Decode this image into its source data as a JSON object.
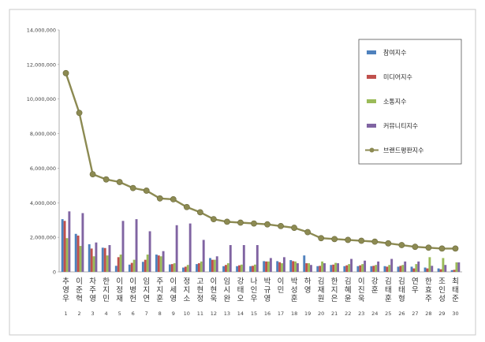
{
  "chart_data": {
    "type": "bar",
    "title": "",
    "xlabel": "",
    "ylabel": "",
    "ylim": [
      0,
      14000000
    ],
    "yticks": [
      "0",
      "2,000,000",
      "4,000,000",
      "6,000,000",
      "8,000,000",
      "10,000,000",
      "12,000,000",
      "14,000,000"
    ],
    "grid": false,
    "legend_position": "top-right",
    "categories": [
      "추영우",
      "이준혁",
      "차주영",
      "한지민",
      "이정재",
      "이병헌",
      "임지연",
      "주지훈",
      "이세영",
      "정지소",
      "고현정",
      "이현욱",
      "임시완",
      "강태오",
      "나인우",
      "박규영",
      "이민",
      "박성훈",
      "하영",
      "김재원",
      "한지은",
      "김혜윤",
      "이진욱",
      "강훈",
      "김태훈",
      "김태형",
      "연우",
      "한효주",
      "조인성",
      "최태준"
    ],
    "ranks": [
      "1",
      "2",
      "3",
      "4",
      "5",
      "6",
      "7",
      "8",
      "9",
      "10",
      "11",
      "12",
      "13",
      "14",
      "15",
      "16",
      "17",
      "18",
      "19",
      "20",
      "21",
      "22",
      "23",
      "24",
      "25",
      "26",
      "27",
      "28",
      "29",
      "30"
    ],
    "series": [
      {
        "name": "참여지수",
        "color": "#4f81bd",
        "kind": "bar",
        "values": [
          3050000,
          2200000,
          1600000,
          1400000,
          350000,
          420000,
          580000,
          1000000,
          430000,
          250000,
          450000,
          800000,
          330000,
          330000,
          330000,
          620000,
          620000,
          680000,
          950000,
          330000,
          400000,
          330000,
          330000,
          330000,
          330000,
          300000,
          300000,
          250000,
          200000,
          100000
        ]
      },
      {
        "name": "미디어지수",
        "color": "#c0504d",
        "kind": "bar",
        "values": [
          2950000,
          2100000,
          1350000,
          1380000,
          850000,
          520000,
          700000,
          950000,
          450000,
          300000,
          500000,
          700000,
          400000,
          380000,
          350000,
          600000,
          560000,
          620000,
          500000,
          350000,
          420000,
          380000,
          380000,
          350000,
          300000,
          350000,
          200000,
          200000,
          150000,
          120000
        ]
      },
      {
        "name": "소통지수",
        "color": "#9bbb59",
        "kind": "bar",
        "values": [
          1950000,
          1500000,
          900000,
          950000,
          1000000,
          700000,
          1000000,
          900000,
          500000,
          400000,
          600000,
          700000,
          500000,
          420000,
          420000,
          600000,
          500000,
          600000,
          500000,
          600000,
          520000,
          450000,
          450000,
          400000,
          400000,
          400000,
          450000,
          850000,
          800000,
          550000
        ]
      },
      {
        "name": "커뮤니티지수",
        "color": "#8064a2",
        "kind": "bar",
        "values": [
          3500000,
          3400000,
          1700000,
          1550000,
          2950000,
          3050000,
          2350000,
          1200000,
          2700000,
          2800000,
          1850000,
          900000,
          1550000,
          1550000,
          1550000,
          800000,
          850000,
          500000,
          400000,
          500000,
          500000,
          750000,
          650000,
          600000,
          750000,
          600000,
          600000,
          350000,
          400000,
          550000
        ]
      },
      {
        "name": "브랜드평판지수",
        "color": "#8c8a52",
        "kind": "line",
        "values": [
          11500000,
          9200000,
          5650000,
          5350000,
          5200000,
          4850000,
          4700000,
          4250000,
          4200000,
          3750000,
          3450000,
          3050000,
          2900000,
          2850000,
          2800000,
          2750000,
          2650000,
          2550000,
          2300000,
          1950000,
          1900000,
          1850000,
          1800000,
          1750000,
          1650000,
          1550000,
          1450000,
          1400000,
          1350000,
          1350000
        ]
      }
    ]
  }
}
